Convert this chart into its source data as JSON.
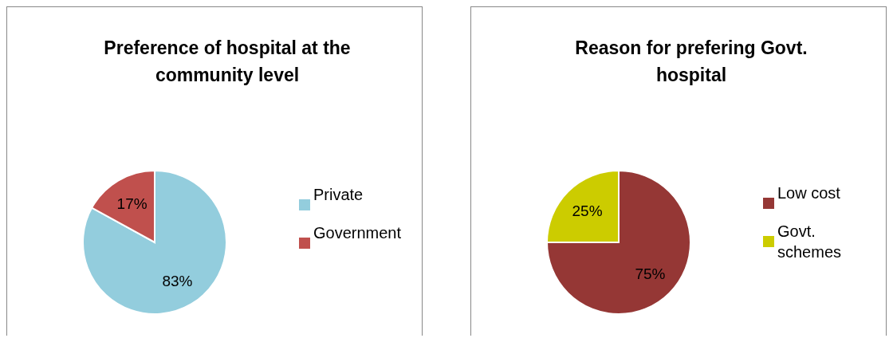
{
  "chart_data": [
    {
      "type": "pie",
      "title": "Preference of hospital at the community level",
      "categories": [
        "Private",
        "Government"
      ],
      "values": [
        83,
        17
      ],
      "colors": [
        "#93cddd",
        "#c0504d"
      ],
      "value_labels": [
        "83%",
        "17%"
      ],
      "legend": "right"
    },
    {
      "type": "pie",
      "title": "Reason for prefering Govt. hospital",
      "categories": [
        "Low cost",
        "Govt. schemes"
      ],
      "values": [
        75,
        25
      ],
      "colors": [
        "#953735",
        "#cccc00"
      ],
      "value_labels": [
        "75%",
        "25%"
      ],
      "legend": "right"
    }
  ]
}
